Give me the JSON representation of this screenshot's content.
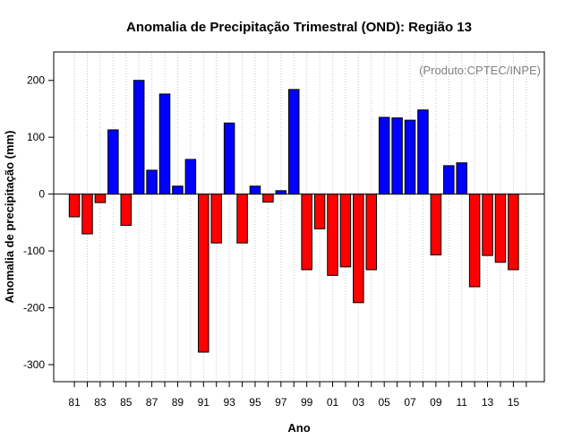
{
  "chart_data": {
    "type": "bar",
    "title": "Anomalia de Precipitação Trimestral (OND): Região 13",
    "xlabel": "Ano",
    "ylabel": "Anomalia de precipitação (mm)",
    "credit": "(Produto:CPTEC/INPE)",
    "ylim": [
      -330,
      250
    ],
    "yticks": [
      -300,
      -200,
      -100,
      0,
      100,
      200
    ],
    "xlim": [
      1979.4,
      2017.4
    ],
    "xticks": [
      {
        "year": 1981,
        "label": "81"
      },
      {
        "year": 1983,
        "label": "83"
      },
      {
        "year": 1985,
        "label": "85"
      },
      {
        "year": 1987,
        "label": "87"
      },
      {
        "year": 1989,
        "label": "89"
      },
      {
        "year": 1991,
        "label": "91"
      },
      {
        "year": 1993,
        "label": "93"
      },
      {
        "year": 1995,
        "label": "95"
      },
      {
        "year": 1997,
        "label": "97"
      },
      {
        "year": 1999,
        "label": "99"
      },
      {
        "year": 2001,
        "label": "01"
      },
      {
        "year": 2003,
        "label": "03"
      },
      {
        "year": 2005,
        "label": "05"
      },
      {
        "year": 2007,
        "label": "07"
      },
      {
        "year": 2009,
        "label": "09"
      },
      {
        "year": 2011,
        "label": "11"
      },
      {
        "year": 2013,
        "label": "13"
      },
      {
        "year": 2015,
        "label": "15"
      }
    ],
    "years": [
      1981,
      1982,
      1983,
      1984,
      1985,
      1986,
      1987,
      1988,
      1989,
      1990,
      1991,
      1992,
      1993,
      1994,
      1995,
      1996,
      1997,
      1998,
      1999,
      2000,
      2001,
      2002,
      2003,
      2004,
      2005,
      2006,
      2007,
      2008,
      2009,
      2010,
      2011,
      2012,
      2013,
      2014,
      2015
    ],
    "values": [
      -40,
      -70,
      -15,
      113,
      -55,
      200,
      42,
      176,
      14,
      61,
      -278,
      -86,
      125,
      -86,
      14,
      -14,
      6,
      184,
      -133,
      -61,
      -143,
      -128,
      -191,
      -133,
      135,
      134,
      130,
      148,
      -107,
      50,
      55,
      -163,
      -108,
      -120,
      -133
    ],
    "colors": {
      "positive": "#0000ff",
      "negative": "#ff0000",
      "zero_line": "#000000",
      "grid": "#c8c8c8",
      "frame": "#000000"
    }
  }
}
